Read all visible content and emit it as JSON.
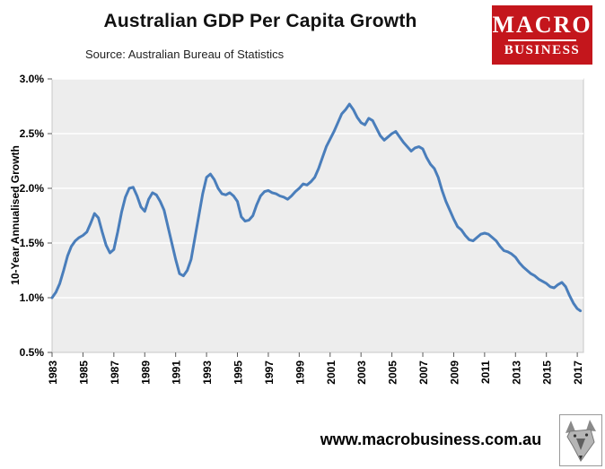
{
  "header": {
    "logo": {
      "line1": "MACRO",
      "line2": "BUSINESS"
    }
  },
  "footer": {
    "url": "www.macrobusiness.com.au"
  },
  "colors": {
    "line": "#4a7ebb",
    "logo_bg": "#c4161c",
    "plot_bg": "#ededed",
    "gridline": "#ffffff",
    "plot_border": "#c8c8c8",
    "tick": "#595959"
  },
  "chart_data": {
    "type": "line",
    "title": "Australian GDP Per Capita Growth",
    "source": "Source: Australian Bureau of Statistics",
    "ylabel": "10-Year Annualised Growth",
    "xlabel": "",
    "ylim": [
      0.5,
      3.0
    ],
    "xlim": [
      1983,
      2017.4
    ],
    "grid": "horizontal",
    "legend": "none",
    "y_ticks": [
      0.5,
      1.0,
      1.5,
      2.0,
      2.5,
      3.0
    ],
    "y_tick_suffix": "%",
    "x_ticks": [
      1983,
      1985,
      1987,
      1989,
      1991,
      1993,
      1995,
      1997,
      1999,
      2001,
      2003,
      2005,
      2007,
      2009,
      2011,
      2013,
      2015,
      2017
    ],
    "series": [
      {
        "name": "10-Year Annualised Growth",
        "points": [
          [
            1983,
            1.0
          ],
          [
            1983.25,
            1.05
          ],
          [
            1983.5,
            1.13
          ],
          [
            1983.75,
            1.25
          ],
          [
            1984,
            1.38
          ],
          [
            1984.25,
            1.47
          ],
          [
            1984.5,
            1.52
          ],
          [
            1984.75,
            1.55
          ],
          [
            1985,
            1.57
          ],
          [
            1985.25,
            1.6
          ],
          [
            1985.5,
            1.68
          ],
          [
            1985.75,
            1.77
          ],
          [
            1986,
            1.73
          ],
          [
            1986.25,
            1.6
          ],
          [
            1986.5,
            1.48
          ],
          [
            1986.75,
            1.41
          ],
          [
            1987,
            1.44
          ],
          [
            1987.25,
            1.6
          ],
          [
            1987.5,
            1.78
          ],
          [
            1987.75,
            1.92
          ],
          [
            1988,
            2.0
          ],
          [
            1988.25,
            2.01
          ],
          [
            1988.5,
            1.93
          ],
          [
            1988.75,
            1.83
          ],
          [
            1989,
            1.79
          ],
          [
            1989.25,
            1.9
          ],
          [
            1989.5,
            1.96
          ],
          [
            1989.75,
            1.94
          ],
          [
            1990,
            1.88
          ],
          [
            1990.25,
            1.8
          ],
          [
            1990.5,
            1.65
          ],
          [
            1990.75,
            1.5
          ],
          [
            1991,
            1.35
          ],
          [
            1991.25,
            1.22
          ],
          [
            1991.5,
            1.2
          ],
          [
            1991.75,
            1.25
          ],
          [
            1992,
            1.35
          ],
          [
            1992.25,
            1.55
          ],
          [
            1992.5,
            1.75
          ],
          [
            1992.75,
            1.95
          ],
          [
            1993,
            2.1
          ],
          [
            1993.25,
            2.13
          ],
          [
            1993.5,
            2.08
          ],
          [
            1993.75,
            2.0
          ],
          [
            1994,
            1.95
          ],
          [
            1994.25,
            1.94
          ],
          [
            1994.5,
            1.96
          ],
          [
            1994.75,
            1.93
          ],
          [
            1995,
            1.88
          ],
          [
            1995.25,
            1.74
          ],
          [
            1995.5,
            1.7
          ],
          [
            1995.75,
            1.71
          ],
          [
            1996,
            1.75
          ],
          [
            1996.25,
            1.85
          ],
          [
            1996.5,
            1.93
          ],
          [
            1996.75,
            1.97
          ],
          [
            1997,
            1.98
          ],
          [
            1997.25,
            1.96
          ],
          [
            1997.5,
            1.95
          ],
          [
            1997.75,
            1.93
          ],
          [
            1998,
            1.92
          ],
          [
            1998.25,
            1.9
          ],
          [
            1998.5,
            1.93
          ],
          [
            1998.75,
            1.97
          ],
          [
            1999,
            2.0
          ],
          [
            1999.25,
            2.04
          ],
          [
            1999.5,
            2.03
          ],
          [
            1999.75,
            2.06
          ],
          [
            2000,
            2.1
          ],
          [
            2000.25,
            2.18
          ],
          [
            2000.5,
            2.28
          ],
          [
            2000.75,
            2.38
          ],
          [
            2001,
            2.45
          ],
          [
            2001.25,
            2.52
          ],
          [
            2001.5,
            2.6
          ],
          [
            2001.75,
            2.68
          ],
          [
            2002,
            2.72
          ],
          [
            2002.25,
            2.77
          ],
          [
            2002.5,
            2.72
          ],
          [
            2002.75,
            2.65
          ],
          [
            2003,
            2.6
          ],
          [
            2003.25,
            2.58
          ],
          [
            2003.5,
            2.64
          ],
          [
            2003.75,
            2.62
          ],
          [
            2004,
            2.55
          ],
          [
            2004.25,
            2.48
          ],
          [
            2004.5,
            2.44
          ],
          [
            2004.75,
            2.47
          ],
          [
            2005,
            2.5
          ],
          [
            2005.25,
            2.52
          ],
          [
            2005.5,
            2.47
          ],
          [
            2005.75,
            2.42
          ],
          [
            2006,
            2.38
          ],
          [
            2006.25,
            2.34
          ],
          [
            2006.5,
            2.37
          ],
          [
            2006.75,
            2.38
          ],
          [
            2007,
            2.36
          ],
          [
            2007.25,
            2.28
          ],
          [
            2007.5,
            2.22
          ],
          [
            2007.75,
            2.18
          ],
          [
            2008,
            2.1
          ],
          [
            2008.25,
            1.98
          ],
          [
            2008.5,
            1.88
          ],
          [
            2008.75,
            1.8
          ],
          [
            2009,
            1.72
          ],
          [
            2009.25,
            1.65
          ],
          [
            2009.5,
            1.62
          ],
          [
            2009.75,
            1.57
          ],
          [
            2010,
            1.53
          ],
          [
            2010.25,
            1.52
          ],
          [
            2010.5,
            1.55
          ],
          [
            2010.75,
            1.58
          ],
          [
            2011,
            1.59
          ],
          [
            2011.25,
            1.58
          ],
          [
            2011.5,
            1.55
          ],
          [
            2011.75,
            1.52
          ],
          [
            2012,
            1.47
          ],
          [
            2012.25,
            1.43
          ],
          [
            2012.5,
            1.42
          ],
          [
            2012.75,
            1.4
          ],
          [
            2013,
            1.37
          ],
          [
            2013.25,
            1.32
          ],
          [
            2013.5,
            1.28
          ],
          [
            2013.75,
            1.25
          ],
          [
            2014,
            1.22
          ],
          [
            2014.25,
            1.2
          ],
          [
            2014.5,
            1.17
          ],
          [
            2014.75,
            1.15
          ],
          [
            2015,
            1.13
          ],
          [
            2015.25,
            1.1
          ],
          [
            2015.5,
            1.09
          ],
          [
            2015.75,
            1.12
          ],
          [
            2016,
            1.14
          ],
          [
            2016.25,
            1.1
          ],
          [
            2016.5,
            1.02
          ],
          [
            2016.75,
            0.95
          ],
          [
            2017,
            0.9
          ],
          [
            2017.2,
            0.88
          ]
        ]
      }
    ]
  }
}
